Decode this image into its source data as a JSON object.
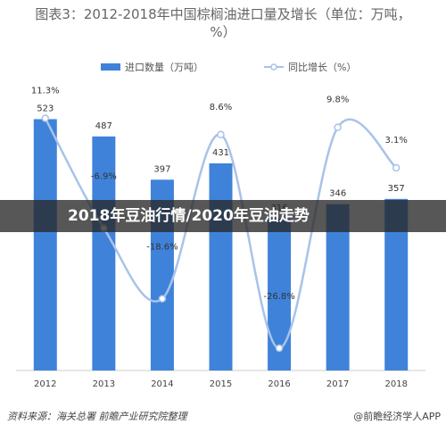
{
  "chart_data": {
    "type": "bar-line",
    "title": "图表3：2012-2018年中国棕榈油进口量及增长（单位：万吨，%）",
    "categories": [
      "2012",
      "2013",
      "2014",
      "2015",
      "2016",
      "2017",
      "2018"
    ],
    "series": [
      {
        "name": "进口数量（万吨）",
        "color": "#3f82da",
        "values": [
          523,
          487,
          397,
          431,
          316,
          346,
          357
        ]
      },
      {
        "name": "同比增长（%）",
        "color": "#a8c3e9",
        "axis": "y2",
        "values": [
          11.3,
          -6.9,
          -18.6,
          8.6,
          -26.8,
          9.8,
          3.1
        ],
        "value_labels": [
          "11.3%",
          "-6.9%",
          "-18.6%",
          "8.6%",
          "-26.8%",
          "9.8%",
          "3.1%"
        ]
      }
    ],
    "ylim": [
      0,
      600
    ],
    "y2lim": [
      -30.5,
      17.3
    ],
    "source": "资料来源：海关总署 前瞻产业研究院整理",
    "credit": "@前瞻经济学人APP"
  },
  "banner": "2018年豆油行情/2020年豆油走势"
}
